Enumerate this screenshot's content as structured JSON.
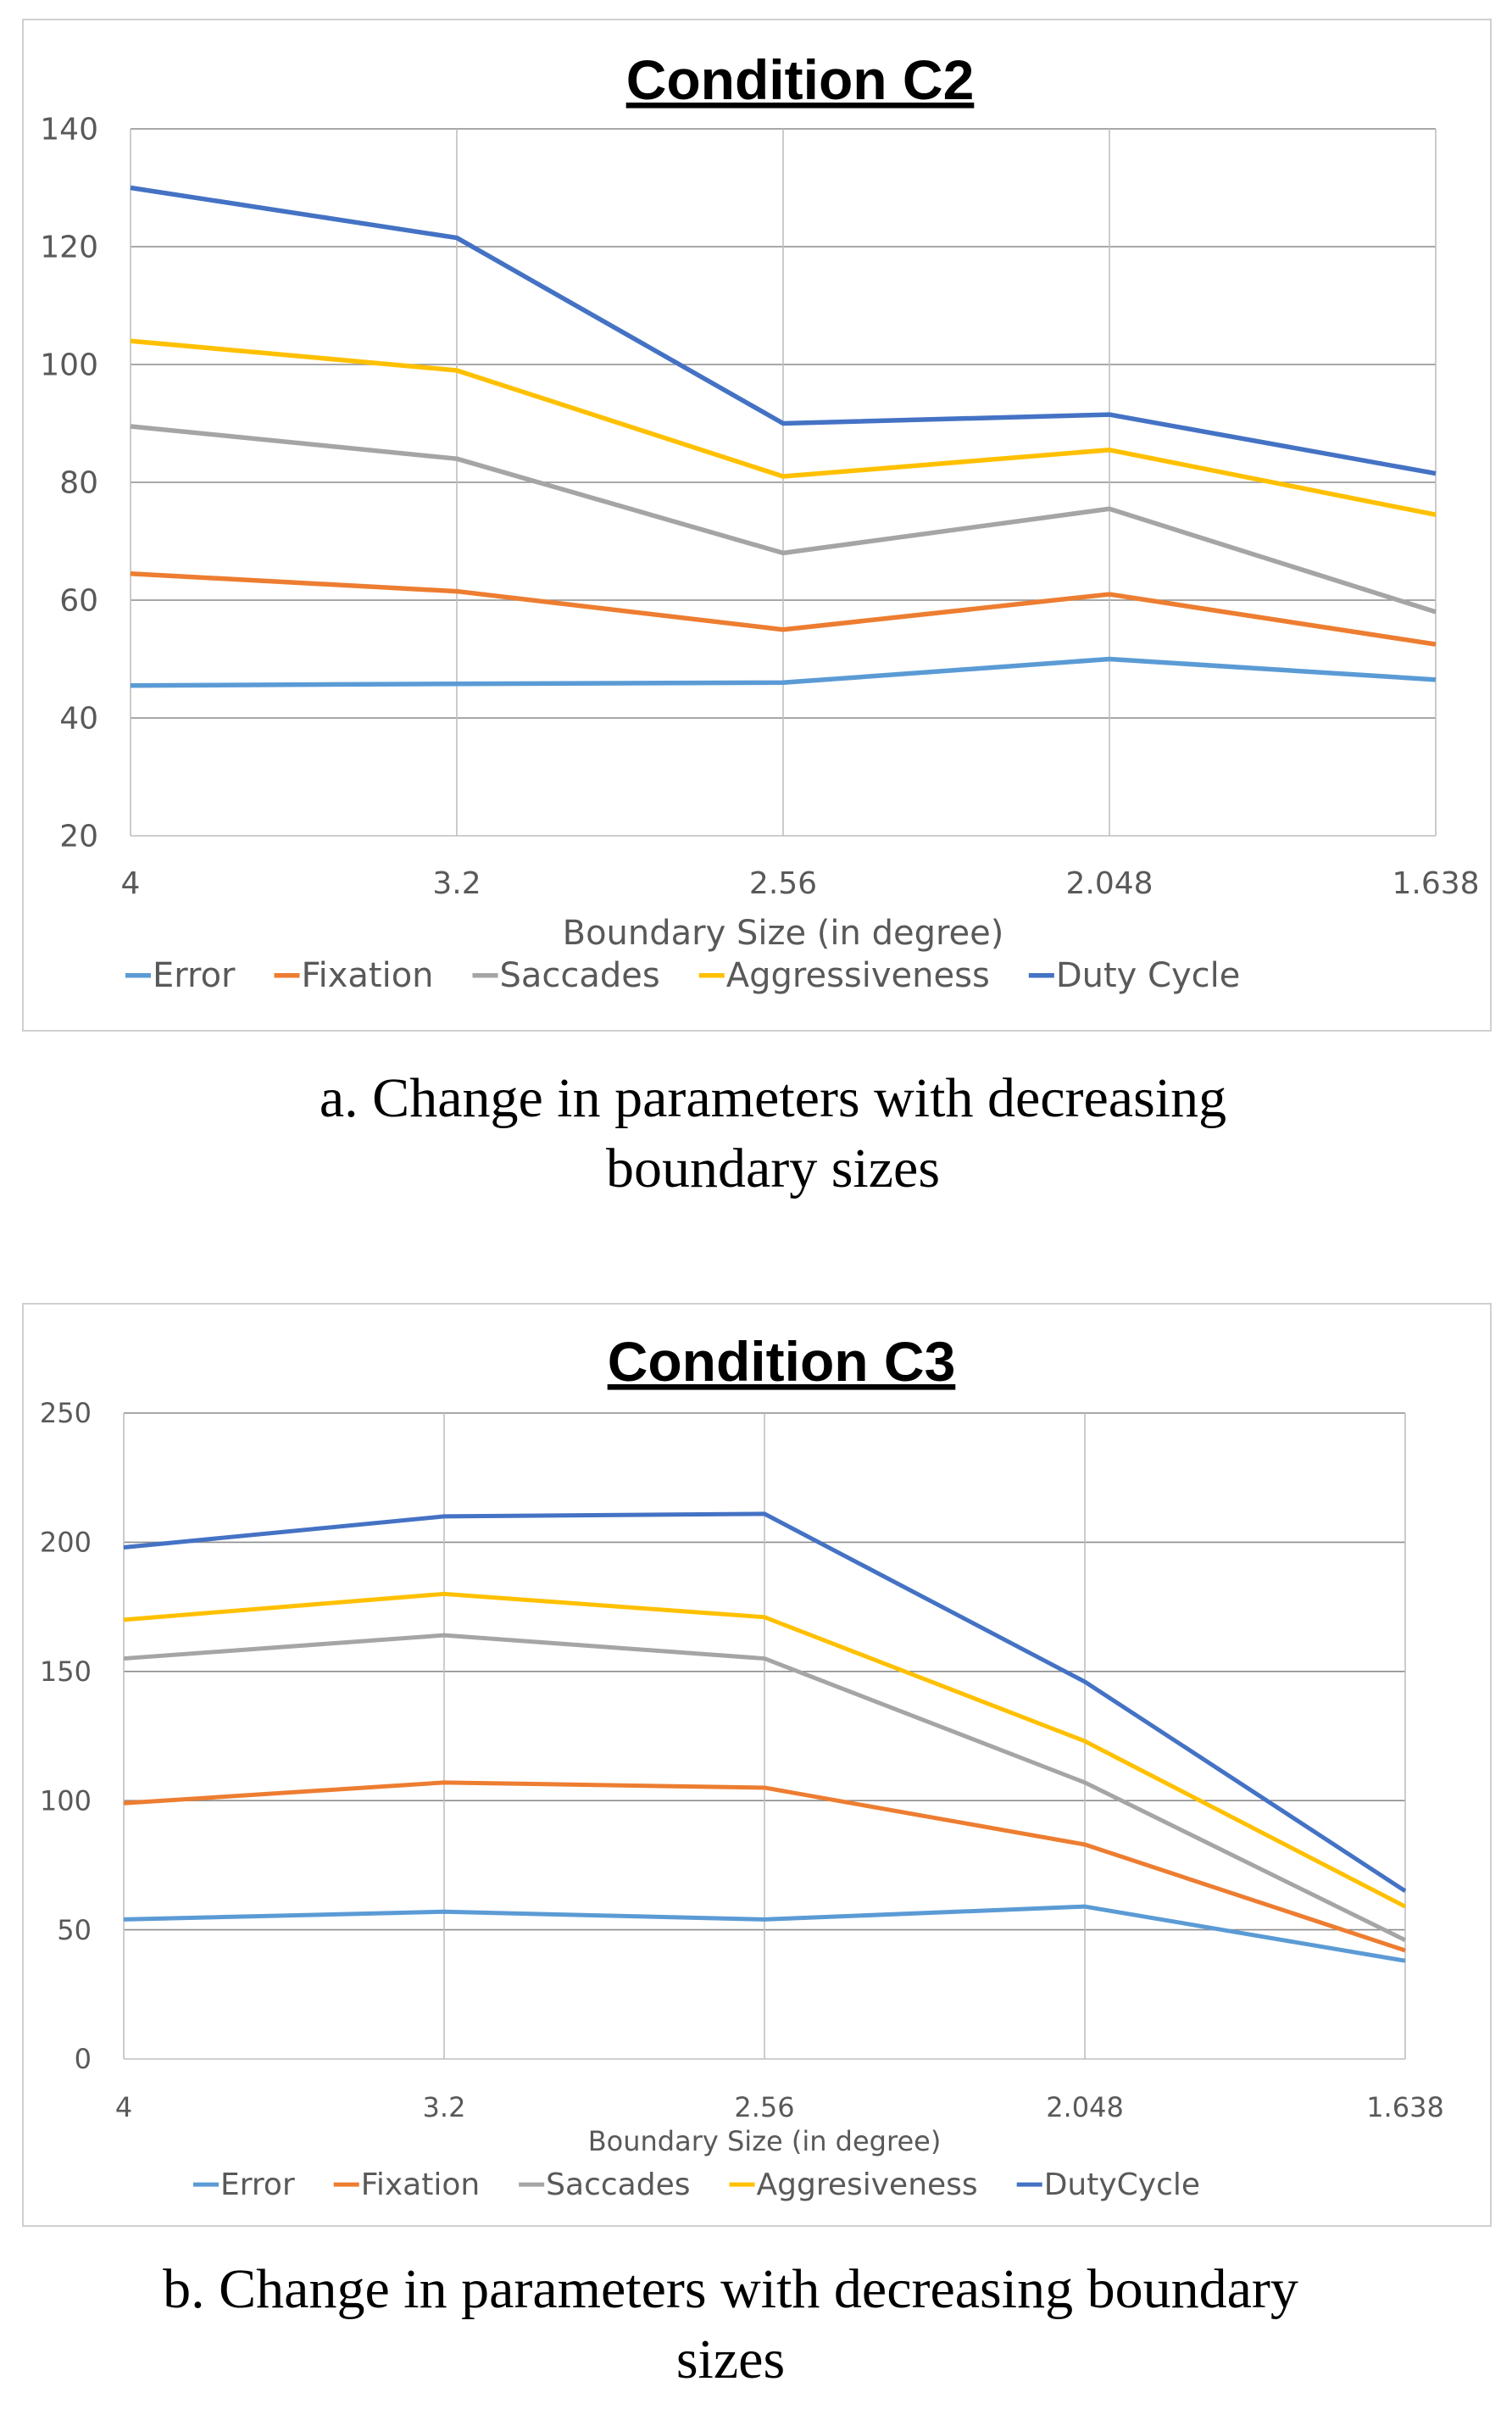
{
  "chart_data": [
    {
      "type": "line",
      "title": "Condition C2",
      "xlabel": "Boundary Size (in degree)",
      "ylabel": "",
      "categories": [
        "4",
        "3.2",
        "2.56",
        "2.048",
        "1.638"
      ],
      "ylim": [
        20,
        140
      ],
      "yticks": [
        "20",
        "40",
        "60",
        "80",
        "100",
        "120",
        "140"
      ],
      "grid": true,
      "legend_position": "bottom",
      "series": [
        {
          "name": "Error",
          "color": "#5b9bd5",
          "values": [
            45.5,
            45.8,
            46,
            50,
            46.5
          ]
        },
        {
          "name": "Fixation",
          "color": "#ed7d31",
          "values": [
            64.5,
            61.5,
            55,
            61,
            52.5
          ]
        },
        {
          "name": "Saccades",
          "color": "#a5a5a5",
          "values": [
            89.5,
            84,
            68,
            75.5,
            58
          ]
        },
        {
          "name": "Aggressiveness",
          "color": "#ffc000",
          "values": [
            104,
            99,
            81,
            85.5,
            74.5
          ]
        },
        {
          "name": "Duty Cycle",
          "color": "#4472c4",
          "values": [
            130,
            121.5,
            90,
            91.5,
            81.5
          ]
        }
      ],
      "caption_lines": [
        "a. Change in parameters with decreasing",
        "boundary sizes"
      ]
    },
    {
      "type": "line",
      "title": "Condition C3",
      "xlabel": "Boundary Size (in degree)",
      "ylabel": "",
      "categories": [
        "4",
        "3.2",
        "2.56",
        "2.048",
        "1.638"
      ],
      "ylim": [
        0,
        250
      ],
      "yticks": [
        "0",
        "50",
        "100",
        "150",
        "200",
        "250"
      ],
      "grid": true,
      "legend_position": "bottom",
      "series": [
        {
          "name": "Error",
          "color": "#5b9bd5",
          "values": [
            54,
            57,
            54,
            59,
            38
          ]
        },
        {
          "name": "Fixation",
          "color": "#ed7d31",
          "values": [
            99,
            107,
            105,
            83,
            42
          ]
        },
        {
          "name": "Saccades",
          "color": "#a5a5a5",
          "values": [
            155,
            164,
            155,
            107,
            46
          ]
        },
        {
          "name": "Aggresiveness",
          "color": "#ffc000",
          "values": [
            170,
            180,
            171,
            123,
            59
          ]
        },
        {
          "name": "DutyCycle",
          "color": "#4472c4",
          "values": [
            198,
            210,
            211,
            146,
            65
          ]
        }
      ],
      "caption_lines": [
        "b. Change in parameters with decreasing boundary",
        "sizes"
      ]
    }
  ]
}
